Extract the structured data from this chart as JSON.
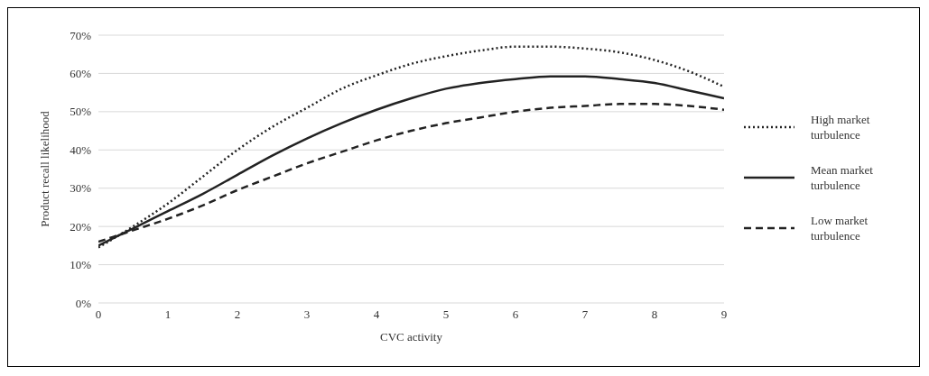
{
  "chart_data": {
    "type": "line",
    "xlabel": "CVC activity",
    "ylabel": "Product recall likelihood",
    "grid": "y",
    "legend": "right",
    "marker": "none",
    "x": [
      0,
      0.5,
      1,
      1.5,
      2,
      2.5,
      3,
      3.5,
      4,
      4.5,
      5,
      5.5,
      6,
      6.5,
      7,
      7.5,
      8,
      8.5,
      9
    ],
    "xlim": [
      0,
      9
    ],
    "xticks": [
      0,
      1,
      2,
      3,
      4,
      5,
      6,
      7,
      8,
      9
    ],
    "ylim": [
      0,
      70
    ],
    "yticks": [
      {
        "value": 0,
        "label": "0%"
      },
      {
        "value": 10,
        "label": "10%"
      },
      {
        "value": 20,
        "label": "20%"
      },
      {
        "value": 30,
        "label": "30%"
      },
      {
        "value": 40,
        "label": "40%"
      },
      {
        "value": 50,
        "label": "50%"
      },
      {
        "value": 60,
        "label": "60%"
      },
      {
        "value": 70,
        "label": "70%"
      }
    ],
    "series": [
      {
        "name": "High market turbulence",
        "color": "#222222",
        "line_style": "dotted",
        "values": [
          14.5,
          20,
          26,
          33,
          40,
          46,
          51,
          56,
          59.5,
          62.5,
          64.5,
          66,
          67,
          67,
          66.5,
          65.5,
          63.5,
          60.5,
          56.5
        ]
      },
      {
        "name": "Mean market turbulence",
        "color": "#222222",
        "line_style": "solid",
        "values": [
          15,
          19.5,
          24,
          28.5,
          33.5,
          38.5,
          43,
          47,
          50.5,
          53.5,
          56,
          57.5,
          58.5,
          59.2,
          59.2,
          58.5,
          57.5,
          55.5,
          53.5
        ]
      },
      {
        "name": "Low market turbulence",
        "color": "#222222",
        "line_style": "dashed",
        "values": [
          16,
          19,
          22,
          25.5,
          29.5,
          33,
          36.5,
          39.5,
          42.5,
          45,
          47,
          48.5,
          50,
          51,
          51.5,
          52,
          52,
          51.5,
          50.5
        ]
      }
    ]
  }
}
